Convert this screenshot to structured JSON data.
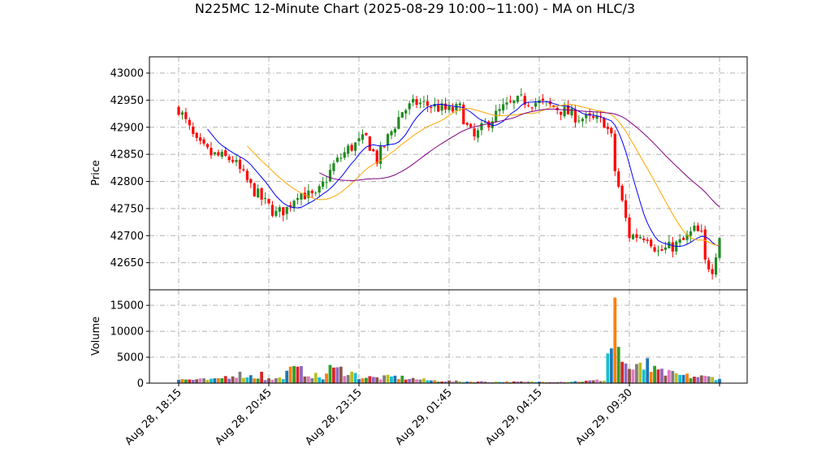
{
  "chart_data": {
    "type": "candlestick",
    "title": "N225MC 12-Minute Chart (2025-08-29 10:00~11:00) - MA on HLC/3",
    "price_panel": {
      "ylabel": "Price",
      "yticks": [
        42650,
        42700,
        42750,
        42800,
        42850,
        42900,
        42950,
        43000
      ],
      "ylim": [
        42600,
        43030
      ],
      "grid": true
    },
    "volume_panel": {
      "ylabel": "Volume",
      "yticks": [
        0,
        5000,
        10000,
        15000
      ],
      "ylim": [
        0,
        18000
      ],
      "grid": true
    },
    "xtick_labels": [
      "Aug 28, 18:15",
      "Aug 28, 20:45",
      "Aug 28, 23:15",
      "Aug 29, 01:45",
      "Aug 29, 04:15",
      "Aug 29, 09:30"
    ],
    "xtick_bar_index": [
      0,
      25,
      50,
      75,
      100,
      125
    ],
    "num_bars": 151,
    "price_path": [
      [
        0,
        42935
      ],
      [
        5,
        42870
      ],
      [
        9,
        42850
      ],
      [
        15,
        42840
      ],
      [
        20,
        42790
      ],
      [
        24,
        42760
      ],
      [
        27,
        42740
      ],
      [
        30,
        42750
      ],
      [
        33,
        42780
      ],
      [
        38,
        42770
      ],
      [
        43,
        42830
      ],
      [
        47,
        42860
      ],
      [
        52,
        42880
      ],
      [
        55,
        42840
      ],
      [
        58,
        42880
      ],
      [
        62,
        42930
      ],
      [
        66,
        42945
      ],
      [
        70,
        42940
      ],
      [
        75,
        42930
      ],
      [
        78,
        42935
      ],
      [
        80,
        42900
      ],
      [
        82,
        42880
      ],
      [
        85,
        42905
      ],
      [
        90,
        42935
      ],
      [
        95,
        42950
      ],
      [
        100,
        42945
      ],
      [
        105,
        42935
      ],
      [
        110,
        42920
      ],
      [
        113,
        42915
      ],
      [
        118,
        42910
      ],
      [
        120,
        42880
      ],
      [
        121,
        42820
      ],
      [
        123,
        42760
      ],
      [
        125,
        42700
      ],
      [
        130,
        42700
      ],
      [
        133,
        42670
      ],
      [
        137,
        42680
      ],
      [
        140,
        42690
      ],
      [
        143,
        42710
      ],
      [
        145,
        42700
      ],
      [
        146,
        42650
      ],
      [
        148,
        42640
      ],
      [
        150,
        42700
      ]
    ],
    "volume_path": [
      [
        0,
        700
      ],
      [
        10,
        650
      ],
      [
        16,
        1800
      ],
      [
        25,
        750
      ],
      [
        28,
        900
      ],
      [
        32,
        2800
      ],
      [
        40,
        900
      ],
      [
        42,
        2700
      ],
      [
        47,
        2400
      ],
      [
        50,
        1200
      ],
      [
        55,
        1000
      ],
      [
        60,
        1200
      ],
      [
        70,
        500
      ],
      [
        80,
        300
      ],
      [
        90,
        250
      ],
      [
        100,
        250
      ],
      [
        112,
        350
      ],
      [
        118,
        600
      ],
      [
        119,
        5500
      ],
      [
        120,
        2700
      ],
      [
        121,
        4000
      ],
      [
        122,
        6500
      ],
      [
        123,
        4500
      ],
      [
        124,
        3500
      ],
      [
        126,
        2500
      ],
      [
        128,
        3000
      ],
      [
        131,
        2500
      ],
      [
        134,
        2000
      ],
      [
        140,
        1400
      ],
      [
        145,
        1200
      ],
      [
        150,
        1000
      ]
    ],
    "volume_spikes": [
      [
        120,
        6700
      ],
      [
        121,
        16500
      ],
      [
        122,
        7000
      ],
      [
        130,
        4800
      ],
      [
        32,
        3300
      ],
      [
        43,
        3000
      ],
      [
        23,
        2200
      ]
    ],
    "series": [
      {
        "name": "",
        "color": "#0000ff",
        "period": 9
      },
      {
        "name": "",
        "color": "#ffa500",
        "period": 20
      },
      {
        "name": "",
        "color": "#800080",
        "period": 40
      }
    ],
    "up_color": "#228b22",
    "down_color": "#ff0000",
    "volume_colors": [
      "#1f77b4",
      "#ff7f0e",
      "#2ca02c",
      "#d62728",
      "#9467bd",
      "#8c564b",
      "#e377c2",
      "#7f7f7f",
      "#bcbd22",
      "#17becf"
    ]
  }
}
